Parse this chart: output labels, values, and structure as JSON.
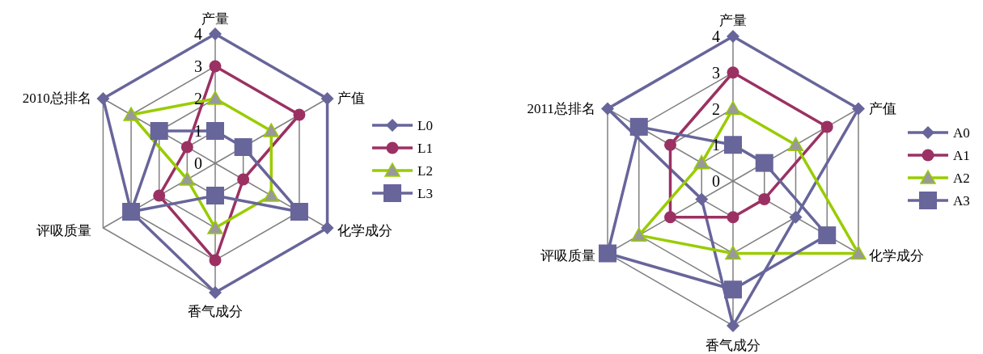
{
  "chart_data": [
    {
      "type": "radar",
      "categories": [
        "产量",
        "产值",
        "化学成分",
        "香气成分",
        "评吸质量",
        "2010总排名"
      ],
      "ylim": [
        0,
        4
      ],
      "yticks": [
        0,
        1,
        2,
        3,
        4
      ],
      "grid": true,
      "legend": "right",
      "series": [
        {
          "name": "L0",
          "color": "#67659a",
          "marker": "diamond",
          "values": [
            4,
            4,
            4,
            4,
            3,
            4
          ]
        },
        {
          "name": "L1",
          "color": "#9b3163",
          "marker": "circle",
          "values": [
            3,
            3,
            1,
            3,
            2,
            1
          ]
        },
        {
          "name": "L2",
          "color": "#99cc00",
          "marker": "triangle",
          "values": [
            2,
            2,
            2,
            2,
            1,
            3
          ]
        },
        {
          "name": "L3",
          "color": "#67659a",
          "marker": "square",
          "values": [
            1,
            1,
            3,
            1,
            3,
            2
          ]
        }
      ]
    },
    {
      "type": "radar",
      "categories": [
        "产量",
        "产值",
        "化学成分",
        "香气成分",
        "评吸质量",
        "2011总排名"
      ],
      "ylim": [
        0,
        4
      ],
      "yticks": [
        0,
        1,
        2,
        3,
        4
      ],
      "grid": true,
      "legend": "right",
      "series": [
        {
          "name": "A0",
          "color": "#67659a",
          "marker": "diamond",
          "values": [
            4,
            4,
            2,
            4,
            1,
            4
          ]
        },
        {
          "name": "A1",
          "color": "#9b3163",
          "marker": "circle",
          "values": [
            3,
            3,
            1,
            1,
            2,
            2
          ]
        },
        {
          "name": "A2",
          "color": "#99cc00",
          "marker": "triangle",
          "values": [
            2,
            2,
            4,
            2,
            3,
            1
          ]
        },
        {
          "name": "A3",
          "color": "#67659a",
          "marker": "square",
          "values": [
            1,
            1,
            3,
            3,
            4,
            3
          ]
        }
      ]
    }
  ]
}
